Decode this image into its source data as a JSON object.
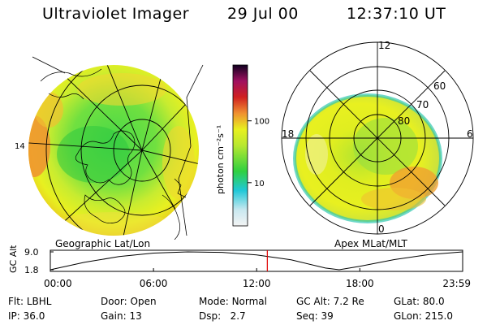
{
  "header": {
    "title": "Ultraviolet Imager",
    "date": "29 Jul 00",
    "time": "12:37:10 UT"
  },
  "colors": {
    "low": "#e8f0f0",
    "cyan": "#20c8d8",
    "green": "#30d040",
    "yellow": "#e8f020",
    "orange": "#f09030",
    "red": "#d02020",
    "magenta": "#a01060",
    "dark": "#100020",
    "cursor": "#e00000"
  },
  "geo_map": {
    "label": "Geographic Lat/Lon",
    "edge_label": "14"
  },
  "colorbar": {
    "unit_label": "photon cm⁻²s⁻¹",
    "ticks": [
      {
        "value": 100,
        "label": "100"
      },
      {
        "value": 10,
        "label": "10"
      }
    ],
    "range": [
      2,
      800
    ],
    "scale": "log"
  },
  "polar_map": {
    "label": "Apex MLat/MLT",
    "mlt_labels": [
      {
        "mlt": 12,
        "label": "12"
      },
      {
        "mlt": 18,
        "label": "18"
      },
      {
        "mlt": 6,
        "label": "6"
      },
      {
        "mlt": 0,
        "label": "0"
      }
    ],
    "mlat_labels": [
      {
        "mlat": 60,
        "label": "60"
      },
      {
        "mlat": 70,
        "label": "70"
      },
      {
        "mlat": 80,
        "label": "80"
      }
    ],
    "rings": [
      50,
      60,
      70,
      80
    ]
  },
  "orbit_plot": {
    "ylabel": "GC Alt",
    "y_ticks": [
      {
        "value": 9.0,
        "label": "9.0"
      },
      {
        "value": 1.8,
        "label": "1.8"
      }
    ],
    "x_ticks": [
      {
        "hour": 0,
        "label": "00:00"
      },
      {
        "hour": 6,
        "label": "06:00"
      },
      {
        "hour": 12,
        "label": "12:00"
      },
      {
        "hour": 18,
        "label": "18:00"
      },
      {
        "hour": 23.98,
        "label": "23:59"
      }
    ],
    "current_hour": 12.62,
    "series": [
      {
        "hour": 0,
        "alt": 1.8
      },
      {
        "hour": 2,
        "alt": 4.8
      },
      {
        "hour": 4,
        "alt": 7.1
      },
      {
        "hour": 6,
        "alt": 8.5
      },
      {
        "hour": 8,
        "alt": 9.0
      },
      {
        "hour": 10,
        "alt": 8.8
      },
      {
        "hour": 12,
        "alt": 7.8
      },
      {
        "hour": 14,
        "alt": 5.8
      },
      {
        "hour": 16,
        "alt": 2.5
      },
      {
        "hour": 16.8,
        "alt": 1.8
      },
      {
        "hour": 18,
        "alt": 3.2
      },
      {
        "hour": 20,
        "alt": 5.9
      },
      {
        "hour": 22,
        "alt": 7.9
      },
      {
        "hour": 23.98,
        "alt": 9.0
      }
    ]
  },
  "info": {
    "flt_label": "Flt:",
    "flt_value": "LBHL",
    "door_label": "Door:",
    "door_value": "Open",
    "mode_label": "Mode:",
    "mode_value": "Normal",
    "gcalt_label": "GC Alt:",
    "gcalt_value": "7.2 Re",
    "glat_label": "GLat:",
    "glat_value": "80.0",
    "ip_label": "IP:",
    "ip_value": "36.0",
    "gain_label": "Gain:",
    "gain_value": "13",
    "dsp_label": "Dsp:",
    "dsp_value": "2.7",
    "seq_label": "Seq:",
    "seq_value": "39",
    "glon_label": "GLon:",
    "glon_value": "215.0"
  }
}
